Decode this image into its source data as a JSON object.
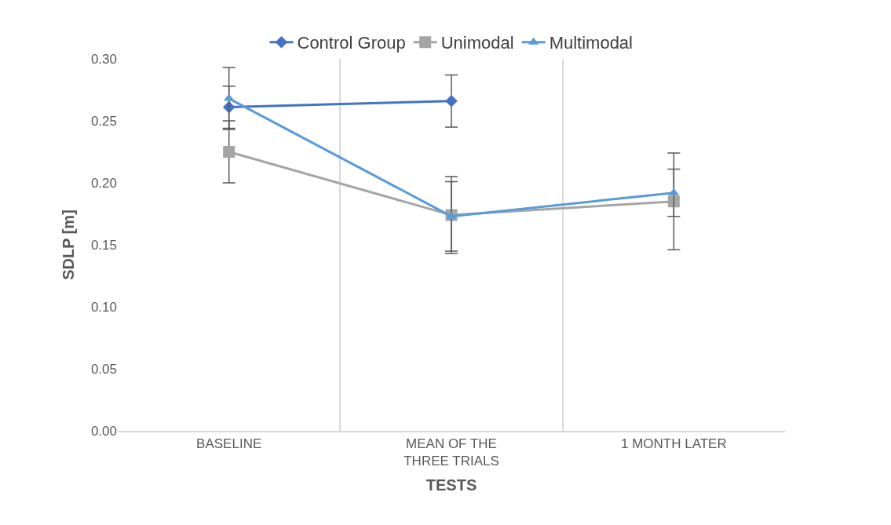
{
  "chart_data": {
    "type": "line",
    "xlabel": "TESTS",
    "ylabel": "SDLP [m]",
    "categories": [
      "BASELINE",
      "MEAN OF THE\nTHREE TRIALS",
      "1 MONTH LATER"
    ],
    "series": [
      {
        "name": "Control Group",
        "color": "#4472c4",
        "marker": "diamond",
        "values": [
          0.261,
          0.266,
          null
        ],
        "errors": [
          0.017,
          0.021,
          null
        ]
      },
      {
        "name": "Unimodal",
        "color": "#a5a5a5",
        "marker": "square",
        "values": [
          0.225,
          0.174,
          0.185
        ],
        "errors": [
          0.025,
          0.031,
          0.039
        ]
      },
      {
        "name": "Multimodal",
        "color": "#5b9bd5",
        "marker": "triangle",
        "values": [
          0.268,
          0.173,
          0.192
        ],
        "errors": [
          0.025,
          0.028,
          0.019
        ]
      }
    ],
    "ylim": [
      0,
      0.3
    ],
    "yticks": [
      {
        "value": 0,
        "label": "0.00"
      },
      {
        "value": 0.05,
        "label": "0.05"
      },
      {
        "value": 0.1,
        "label": "0.10"
      },
      {
        "value": 0.15,
        "label": "0.15"
      },
      {
        "value": 0.2,
        "label": "0.20"
      },
      {
        "value": 0.25,
        "label": "0.25"
      },
      {
        "value": 0.3,
        "label": "0.30"
      }
    ],
    "grid": "x",
    "legend": "top",
    "line_style": "solid"
  }
}
